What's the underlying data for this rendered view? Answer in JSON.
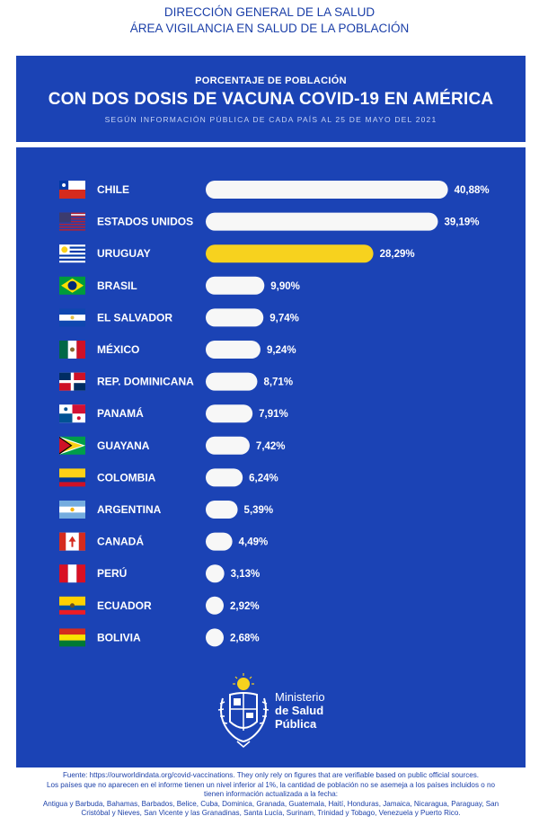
{
  "header": {
    "line1": "DIRECCIÓN GENERAL DE LA SALUD",
    "line2": "ÁREA VIGILANCIA EN SALUD DE LA POBLACIÓN"
  },
  "colors": {
    "background_blue": "#1b43b5",
    "bar_default": "#f7f7f7",
    "bar_highlight": "#f7d21e",
    "header_text": "#1b3fa8"
  },
  "chart_data": {
    "type": "bar",
    "orientation": "horizontal",
    "title_top": "PORCENTAJE DE POBLACIÓN",
    "title": "CON DOS DOSIS DE VACUNA COVID-19 EN AMÉRICA",
    "subtitle": "SEGÚN INFORMACIÓN PÚBLICA DE CADA PAÍS AL 25 DE MAYO DEL 2021",
    "categories": [
      "CHILE",
      "ESTADOS UNIDOS",
      "URUGUAY",
      "BRASIL",
      "EL SALVADOR",
      "MÉXICO",
      "REP. DOMINICANA",
      "PANAMÁ",
      "GUAYANA",
      "COLOMBIA",
      "ARGENTINA",
      "CANADÁ",
      "PERÚ",
      "ECUADOR",
      "BOLIVIA"
    ],
    "values": [
      40.88,
      39.19,
      28.29,
      9.9,
      9.74,
      9.24,
      8.71,
      7.91,
      7.42,
      6.24,
      5.39,
      4.49,
      3.13,
      2.92,
      2.68
    ],
    "value_labels": [
      "40,88%",
      "39,19%",
      "28,29%",
      "9,90%",
      "9,74%",
      "9,24%",
      "8,71%",
      "7,91%",
      "7,42%",
      "6,24%",
      "5,39%",
      "4,49%",
      "3,13%",
      "2,92%",
      "2,68%"
    ],
    "flags": [
      "chile-flag",
      "usa-flag",
      "uruguay-flag",
      "brazil-flag",
      "el-salvador-flag",
      "mexico-flag",
      "dominican-republic-flag",
      "panama-flag",
      "guyana-flag",
      "colombia-flag",
      "argentina-flag",
      "canada-flag",
      "peru-flag",
      "ecuador-flag",
      "bolivia-flag"
    ],
    "highlight": "URUGUAY",
    "xlim": [
      0,
      42
    ],
    "grid": false,
    "legend": "none"
  },
  "logo": {
    "line1": "Ministerio",
    "line2": "de Salud",
    "line3": "Pública"
  },
  "footer": {
    "line1": "Fuente: https://ourworldindata.org/covid-vaccinations. They only rely on figures that are verifiable based on public official sources.",
    "line2": "Los países que no aparecen en el informe tienen un nivel inferior al 1%, la cantidad de población no se asemeja a los países incluidos o no",
    "line3": "tienen información actualizada a la fecha:",
    "line4": "Antigua y Barbuda, Bahamas, Barbados, Belice, Cuba, Dominica, Granada, Guatemala, Haití, Honduras, Jamaica, Nicaragua, Paraguay, San",
    "line5": "Cristóbal y Nieves, San Vicente y las Granadinas, Santa Lucía, Surinam, Trinidad y Tobago, Venezuela y Puerto Rico."
  }
}
